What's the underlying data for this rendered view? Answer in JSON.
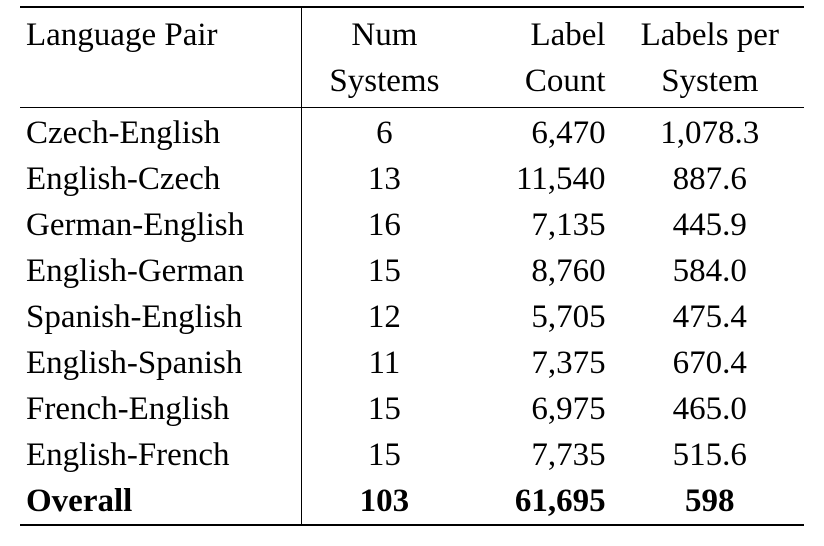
{
  "table": {
    "headers": [
      [
        "Language Pair"
      ],
      [
        "Num",
        "Systems"
      ],
      [
        "Label",
        "Count"
      ],
      [
        "Labels per",
        "System"
      ]
    ],
    "rows": [
      [
        "Czech-English",
        "6",
        "6,470",
        "1,078.3"
      ],
      [
        "English-Czech",
        "13",
        "11,540",
        "887.6"
      ],
      [
        "German-English",
        "16",
        "7,135",
        "445.9"
      ],
      [
        "English-German",
        "15",
        "8,760",
        "584.0"
      ],
      [
        "Spanish-English",
        "12",
        "5,705",
        "475.4"
      ],
      [
        "English-Spanish",
        "11",
        "7,375",
        "670.4"
      ],
      [
        "French-English",
        "15",
        "6,975",
        "465.0"
      ],
      [
        "English-French",
        "15",
        "7,735",
        "515.6"
      ]
    ],
    "overall": [
      "Overall",
      "103",
      "61,695",
      "598"
    ]
  }
}
